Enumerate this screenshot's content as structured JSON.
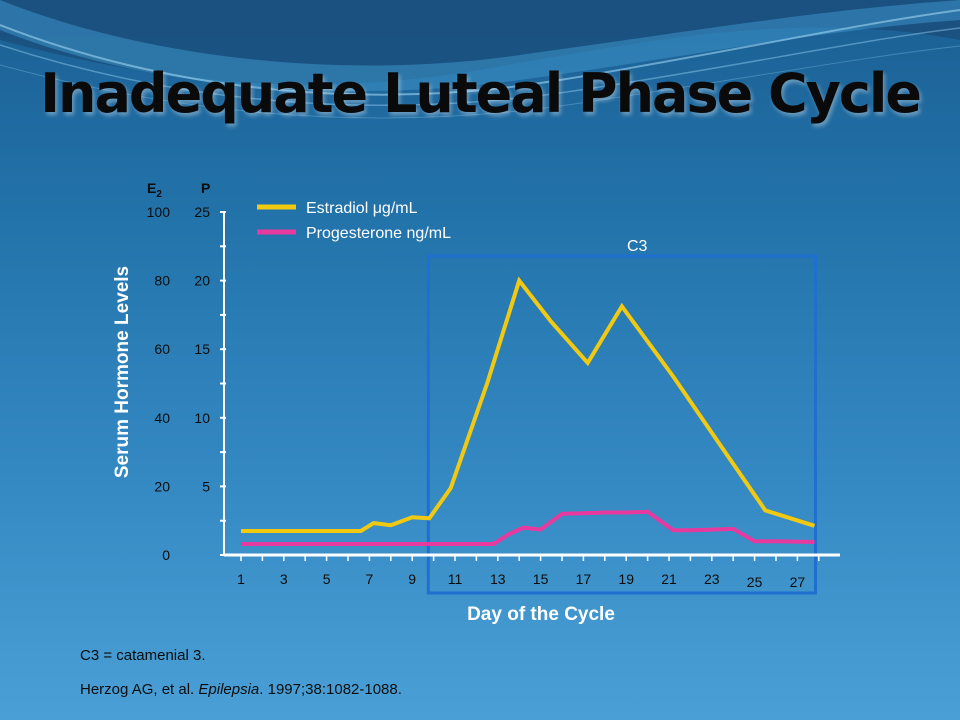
{
  "slide": {
    "title": "Inadequate Luteal Phase Cycle",
    "footnote": "C3 = catamenial 3.",
    "citation": {
      "authors": "Herzog AG, et al.",
      "journal": "Epilepsia",
      "details": ". 1997;38:1082-1088."
    }
  },
  "colors": {
    "estradiol": "#f2c911",
    "progesterone": "#e83a9e",
    "highlight_box": "#1e6fd0",
    "axis": "#ffffff"
  },
  "chart_data": {
    "type": "line",
    "xlabel": "Day of the Cycle",
    "ylabel": "Serum Hormone Levels",
    "x_ticks": [
      "1",
      "3",
      "5",
      "7",
      "9",
      "11",
      "13",
      "15",
      "17",
      "19",
      "21",
      "23",
      "25",
      "27"
    ],
    "left_axis": {
      "label": "E",
      "label_sub": "2",
      "ticks": [
        "0",
        "20",
        "40",
        "60",
        "80",
        "100"
      ],
      "ylim": [
        0,
        100
      ]
    },
    "right_axis": {
      "label": "P",
      "ticks": [
        "5",
        "10",
        "15",
        "20",
        "25"
      ],
      "ylim": [
        0,
        25
      ]
    },
    "legend_position": "top",
    "series": [
      {
        "name": "Estradiol",
        "unit": "μg/mL",
        "axis": "E2",
        "points": [
          [
            1,
            7
          ],
          [
            2,
            7
          ],
          [
            3,
            7
          ],
          [
            4,
            7
          ],
          [
            5,
            7
          ],
          [
            6,
            7
          ],
          [
            6.6,
            7
          ],
          [
            7.2,
            9.3
          ],
          [
            8,
            8.7
          ],
          [
            9,
            11
          ],
          [
            9.8,
            10.7
          ],
          [
            10.8,
            19.5
          ],
          [
            12.5,
            50
          ],
          [
            14,
            80
          ],
          [
            15.5,
            68
          ],
          [
            17.2,
            56
          ],
          [
            18.8,
            72.5
          ],
          [
            21.2,
            52
          ],
          [
            23.4,
            32
          ],
          [
            25.5,
            13
          ],
          [
            27.8,
            8.5
          ]
        ]
      },
      {
        "name": "Progesterone",
        "unit": "ng/mL",
        "axis": "P",
        "points": [
          [
            1,
            0.8
          ],
          [
            2,
            0.8
          ],
          [
            4,
            0.8
          ],
          [
            6,
            0.8
          ],
          [
            8,
            0.8
          ],
          [
            10,
            0.8
          ],
          [
            12,
            0.8
          ],
          [
            12.8,
            0.8
          ],
          [
            13.5,
            1.5
          ],
          [
            14.2,
            2
          ],
          [
            15,
            1.85
          ],
          [
            16,
            3
          ],
          [
            17,
            3.05
          ],
          [
            18,
            3.1
          ],
          [
            19,
            3.1
          ],
          [
            20,
            3.15
          ],
          [
            21.2,
            1.8
          ],
          [
            22,
            1.8
          ],
          [
            23,
            1.85
          ],
          [
            24,
            1.9
          ],
          [
            25,
            1
          ],
          [
            26,
            1
          ],
          [
            27.8,
            0.95
          ]
        ]
      }
    ],
    "annotations": [
      {
        "label": "C3",
        "x_range": [
          9.8,
          27.8
        ]
      }
    ]
  }
}
